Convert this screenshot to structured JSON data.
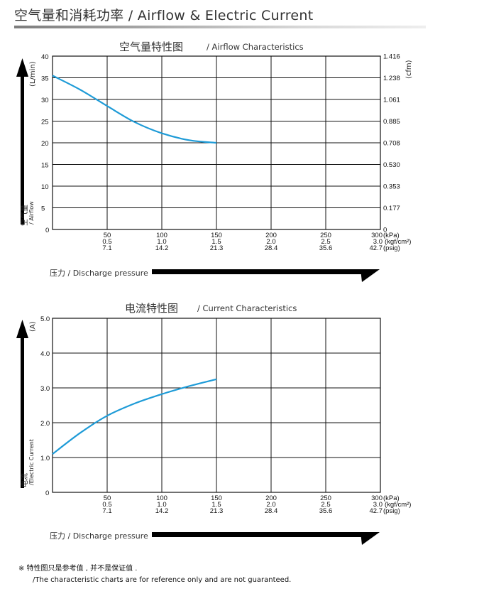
{
  "page_title": "空气量和消耗功率 / Airflow & Electric Current",
  "note": {
    "zh": "※ 特性图只是参考值 , 并不是保证值 .",
    "en": "/The characteristic charts are for reference only and are not guaranteed."
  },
  "pressure_label": "压力 / Discharge pressure",
  "x_labels_kpa": [
    "50",
    "100",
    "150",
    "200",
    "250",
    "300"
  ],
  "x_labels_kgf": [
    "0.5",
    "1.0",
    "1.5",
    "2.0",
    "2.5",
    "3.0"
  ],
  "x_labels_psig": [
    "7.1",
    "14.2",
    "21.3",
    "28.4",
    "35.6",
    "42.7"
  ],
  "x_unit_kpa": "(kPa)",
  "x_unit_kgf": "(kgf/cm²)",
  "x_unit_psig": "(psig)",
  "x_zero": "0",
  "curve_color": "#1e9bd7",
  "chart_data": [
    {
      "type": "line",
      "title": "空气量特性图",
      "title_en": "/ Airflow Characteristics",
      "ylabel": "(L/min)",
      "ylabel_zh": "空气量",
      "ylabel_en": "/ Airflow",
      "y2label": "(cfm)",
      "xlim": [
        0,
        300
      ],
      "ylim": [
        0,
        40
      ],
      "y_ticks": [
        "35",
        "30",
        "25",
        "20",
        "15",
        "10",
        "5"
      ],
      "y_top_tick": "40",
      "y2_ticks": [
        "1.416",
        "1.238",
        "1.061",
        "0.885",
        "0.708",
        "0.530",
        "0.353",
        "0.177",
        "0"
      ],
      "grid": true,
      "series": [
        {
          "x": [
            0,
            25,
            50,
            75,
            100,
            125,
            150
          ],
          "y": [
            35.5,
            32.3,
            28.5,
            24.8,
            22.2,
            20.6,
            20.0
          ]
        }
      ]
    },
    {
      "type": "line",
      "title": "电流特性图",
      "title_en": "/ Current Characteristics",
      "ylabel": "(A)",
      "ylabel_zh": "电流",
      "ylabel_en": "/Electric Current",
      "xlim": [
        0,
        300
      ],
      "ylim": [
        0,
        5
      ],
      "y_ticks": [
        "5.0",
        "4.0",
        "3.0",
        "2.0",
        "1.0"
      ],
      "grid": true,
      "series": [
        {
          "x": [
            0,
            25,
            50,
            75,
            100,
            125,
            150
          ],
          "y": [
            1.1,
            1.7,
            2.2,
            2.55,
            2.82,
            3.05,
            3.25
          ]
        }
      ]
    }
  ]
}
